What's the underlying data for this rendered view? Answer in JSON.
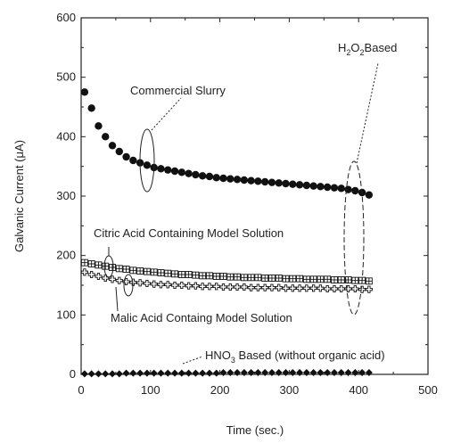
{
  "chart_data": {
    "type": "scatter",
    "xlabel": "Time (sec.)",
    "ylabel": "Galvanic Current (μA)",
    "xlim": [
      0,
      500
    ],
    "ylim": [
      0,
      600
    ],
    "xticks": [
      0,
      100,
      200,
      300,
      400,
      500
    ],
    "yticks": [
      0,
      100,
      200,
      300,
      400,
      500,
      600
    ],
    "xtick_labels": [
      "0",
      "100",
      "200",
      "300",
      "400",
      "500"
    ],
    "ytick_labels": [
      "0",
      "100",
      "200",
      "300",
      "400",
      "500",
      "600"
    ],
    "grid": false,
    "series": [
      {
        "name": "Commercial Slurry",
        "marker": "filled-circle",
        "x": [
          5,
          15,
          25,
          35,
          45,
          55,
          65,
          75,
          85,
          95,
          105,
          115,
          125,
          135,
          145,
          155,
          165,
          175,
          185,
          195,
          205,
          215,
          225,
          235,
          245,
          255,
          265,
          275,
          285,
          295,
          305,
          315,
          325,
          335,
          345,
          355,
          365,
          375,
          385,
          395,
          405,
          415
        ],
        "y": [
          475,
          448,
          418,
          400,
          385,
          375,
          366,
          360,
          356,
          352,
          348,
          346,
          344,
          342,
          340,
          338,
          336,
          334,
          333,
          331,
          330,
          329,
          328,
          327,
          326,
          325,
          324,
          323,
          322,
          321,
          320,
          319,
          318,
          317,
          316,
          315,
          314,
          313,
          311,
          309,
          306,
          302
        ]
      },
      {
        "name": "Citric Acid Containing Model Solution",
        "marker": "boxed-plus",
        "x": [
          5,
          15,
          25,
          35,
          45,
          55,
          65,
          75,
          85,
          95,
          105,
          115,
          125,
          135,
          145,
          155,
          165,
          175,
          185,
          195,
          205,
          215,
          225,
          235,
          245,
          255,
          265,
          275,
          285,
          295,
          305,
          315,
          325,
          335,
          345,
          355,
          365,
          375,
          385,
          395,
          405,
          415
        ],
        "y": [
          188,
          186,
          184,
          182,
          180,
          178,
          177,
          175,
          174,
          173,
          172,
          171,
          170,
          169,
          168,
          168,
          167,
          166,
          166,
          165,
          165,
          164,
          164,
          163,
          163,
          163,
          162,
          162,
          162,
          161,
          161,
          161,
          160,
          160,
          160,
          160,
          159,
          159,
          159,
          158,
          158,
          157
        ]
      },
      {
        "name": "Malic Acid Containg Model Solution",
        "marker": "plus",
        "x": [
          5,
          15,
          25,
          35,
          45,
          55,
          65,
          75,
          85,
          95,
          105,
          115,
          125,
          135,
          145,
          155,
          165,
          175,
          185,
          195,
          205,
          215,
          225,
          235,
          245,
          255,
          265,
          275,
          285,
          295,
          305,
          315,
          325,
          335,
          345,
          355,
          365,
          375,
          385,
          395,
          405,
          415
        ],
        "y": [
          172,
          168,
          165,
          162,
          160,
          158,
          156,
          155,
          154,
          153,
          152,
          151,
          151,
          150,
          150,
          149,
          149,
          148,
          148,
          148,
          147,
          147,
          147,
          147,
          146,
          146,
          146,
          146,
          146,
          145,
          145,
          145,
          145,
          145,
          145,
          144,
          144,
          144,
          144,
          144,
          143,
          143
        ]
      },
      {
        "name": "HNO3 Based (without organic acid)",
        "marker": "filled-diamond",
        "x": [
          5,
          15,
          25,
          35,
          45,
          55,
          65,
          75,
          85,
          95,
          105,
          115,
          125,
          135,
          145,
          155,
          165,
          175,
          185,
          195,
          205,
          215,
          225,
          235,
          245,
          255,
          265,
          275,
          285,
          295,
          305,
          315,
          325,
          335,
          345,
          355,
          365,
          375,
          385,
          395,
          405,
          415
        ],
        "y": [
          1,
          1,
          1,
          1,
          1,
          1,
          2,
          2,
          2,
          2,
          2,
          2,
          2,
          2,
          2,
          2,
          2,
          2,
          2,
          2,
          3,
          3,
          3,
          3,
          3,
          3,
          3,
          3,
          3,
          3,
          3,
          3,
          3,
          3,
          3,
          3,
          3,
          3,
          3,
          3,
          3,
          3
        ]
      }
    ],
    "annotations": [
      {
        "text": "Commercial Slurry",
        "x": 145,
        "y": 483
      },
      {
        "text_main": "H",
        "sub1": "2",
        "mid": "O",
        "sub2": "2",
        "tail": "Based",
        "x": 352,
        "y": 560
      },
      {
        "text": "Citric Acid Containing Model Solution",
        "x": 60,
        "y": 206
      },
      {
        "text": "Malic Acid Containg Model Solution",
        "x": 78,
        "y": 78
      },
      {
        "text_main": "HNO",
        "sub1": "3",
        "tail": " Based (without organic acid)",
        "x": 225,
        "y": 25
      }
    ]
  }
}
